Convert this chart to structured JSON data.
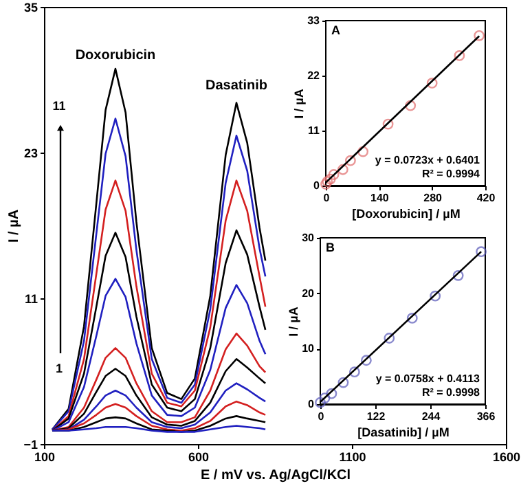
{
  "chart_data": [
    {
      "type": "line",
      "xlabel": "E / mV vs. Ag/AgCl/KCl",
      "ylabel": "I / µA",
      "xlim": [
        100,
        1600
      ],
      "xticks": [
        100,
        600,
        1100,
        1600
      ],
      "ylim": [
        -1,
        35
      ],
      "yticks": [
        -1,
        11,
        23,
        35
      ],
      "grid": false,
      "line_style": "solid",
      "x": [
        127,
        180,
        230,
        270,
        300,
        332,
        365,
        400,
        450,
        500,
        546,
        590,
        640,
        690,
        725,
        760,
        800,
        819
      ],
      "series": [
        {
          "color": "#000000",
          "values": [
            0.2,
            1.9,
            8.7,
            18.8,
            26.5,
            29.9,
            26.3,
            17.3,
            6.9,
            3.2,
            2.7,
            4.4,
            11.2,
            22.8,
            27.1,
            23.8,
            16.8,
            14.1
          ]
        },
        {
          "color": "#2020c0",
          "values": [
            0.2,
            1.7,
            7.5,
            16.3,
            22.9,
            25.8,
            22.7,
            15.0,
            6.0,
            2.8,
            2.4,
            3.9,
            10.1,
            20.5,
            24.4,
            21.5,
            15.1,
            12.8
          ]
        },
        {
          "color": "#d42020",
          "values": [
            0.1,
            1.3,
            6.0,
            13.0,
            18.3,
            20.7,
            18.2,
            12.0,
            4.8,
            2.4,
            2.1,
            3.4,
            8.6,
            17.4,
            20.7,
            18.2,
            12.8,
            10.3
          ]
        },
        {
          "color": "#000000",
          "values": [
            0.1,
            1.1,
            4.8,
            10.3,
            14.5,
            16.4,
            14.4,
            9.5,
            3.9,
            2.0,
            1.7,
            2.7,
            6.9,
            13.9,
            16.6,
            14.6,
            10.3,
            8.4
          ]
        },
        {
          "color": "#2020c0",
          "values": [
            0.1,
            0.8,
            3.7,
            7.9,
            11.2,
            12.6,
            11.1,
            7.3,
            3.0,
            1.4,
            1.3,
            2.0,
            5.1,
            10.2,
            12.1,
            10.6,
            7.5,
            6.4
          ]
        },
        {
          "color": "#d42020",
          "values": [
            0.1,
            0.4,
            2.0,
            4.3,
            6.1,
            6.9,
            6.1,
            4.0,
            1.7,
            0.8,
            0.8,
            1.2,
            3.4,
            6.8,
            8.1,
            7.1,
            5.4,
            4.9
          ]
        },
        {
          "color": "#000000",
          "values": [
            0.1,
            0.3,
            1.5,
            3.3,
            4.6,
            5.2,
            4.6,
            3.0,
            1.2,
            0.6,
            0.5,
            0.9,
            2.4,
            5.0,
            6.0,
            5.3,
            4.4,
            4.0
          ]
        },
        {
          "color": "#2020c0",
          "values": [
            0.1,
            0.2,
            1.0,
            2.1,
            3.0,
            3.4,
            3.0,
            2.0,
            0.8,
            0.4,
            0.3,
            0.6,
            1.6,
            3.4,
            4.0,
            3.5,
            2.8,
            2.5
          ]
        },
        {
          "color": "#d42020",
          "values": [
            0.1,
            0.2,
            0.7,
            1.4,
            2.0,
            2.3,
            2.0,
            1.3,
            0.5,
            0.2,
            0.1,
            0.3,
            0.9,
            2.1,
            2.5,
            2.2,
            1.6,
            1.4
          ]
        },
        {
          "color": "#000000",
          "values": [
            0.1,
            0.1,
            0.4,
            0.8,
            1.1,
            1.2,
            1.1,
            0.7,
            0.2,
            0.1,
            0.0,
            0.1,
            0.5,
            1.1,
            1.3,
            1.1,
            0.9,
            0.8
          ]
        },
        {
          "color": "#2020c0",
          "values": [
            0.1,
            0.1,
            0.2,
            0.3,
            0.4,
            0.4,
            0.4,
            0.3,
            0.1,
            0.0,
            0.0,
            0.0,
            0.2,
            0.4,
            0.5,
            0.4,
            0.3,
            0.2
          ]
        }
      ],
      "annotations": [
        "Doxorubicin",
        "Dasatinib",
        "11",
        "1"
      ]
    },
    {
      "type": "scatter",
      "title": "A",
      "xlabel": "[Doxorubicin] / µM",
      "ylabel": "I / µA",
      "xlim": [
        0,
        420
      ],
      "xticks": [
        0,
        140,
        280,
        420
      ],
      "ylim": [
        0,
        33
      ],
      "yticks": [
        0,
        11,
        22,
        33
      ],
      "grid": false,
      "series": [
        {
          "color": "#e06a6a",
          "marker": "circle",
          "x": [
            0,
            4,
            12,
            21,
            45,
            65,
            98,
            164,
            223,
            280,
            352,
            404
          ],
          "values": [
            0.3,
            0.8,
            1.3,
            2.2,
            3.2,
            5.0,
            6.8,
            12.3,
            16.0,
            20.5,
            26.0,
            30.0
          ]
        },
        {
          "type": "line",
          "color": "#000000",
          "line_style": "solid",
          "marker": "none",
          "x": [
            0,
            404
          ],
          "values": [
            0.6,
            29.9
          ]
        }
      ],
      "annotations": [
        "y = 0.0723x + 0.6401",
        "R² = 0.9994"
      ]
    },
    {
      "type": "scatter",
      "title": "B",
      "xlabel": "[Dasatinib] / µM",
      "ylabel": "I / µA",
      "xlim": [
        0,
        366
      ],
      "xticks": [
        0,
        122,
        244,
        366
      ],
      "ylim": [
        0,
        30
      ],
      "yticks": [
        0,
        10,
        20,
        30
      ],
      "grid": false,
      "series": [
        {
          "color": "#5858b8",
          "marker": "circle",
          "x": [
            0,
            10,
            25,
            51,
            76,
            102,
            153,
            204,
            255,
            306,
            357
          ],
          "values": [
            0.3,
            1.1,
            1.9,
            3.9,
            5.8,
            7.9,
            11.9,
            15.5,
            19.5,
            23.2,
            27.5
          ]
        },
        {
          "type": "line",
          "color": "#000000",
          "line_style": "solid",
          "marker": "none",
          "x": [
            0,
            357
          ],
          "values": [
            0.4,
            27.5
          ]
        }
      ],
      "annotations": [
        "y = 0.0758x  + 0.4113",
        "R² = 0.9998"
      ]
    }
  ]
}
